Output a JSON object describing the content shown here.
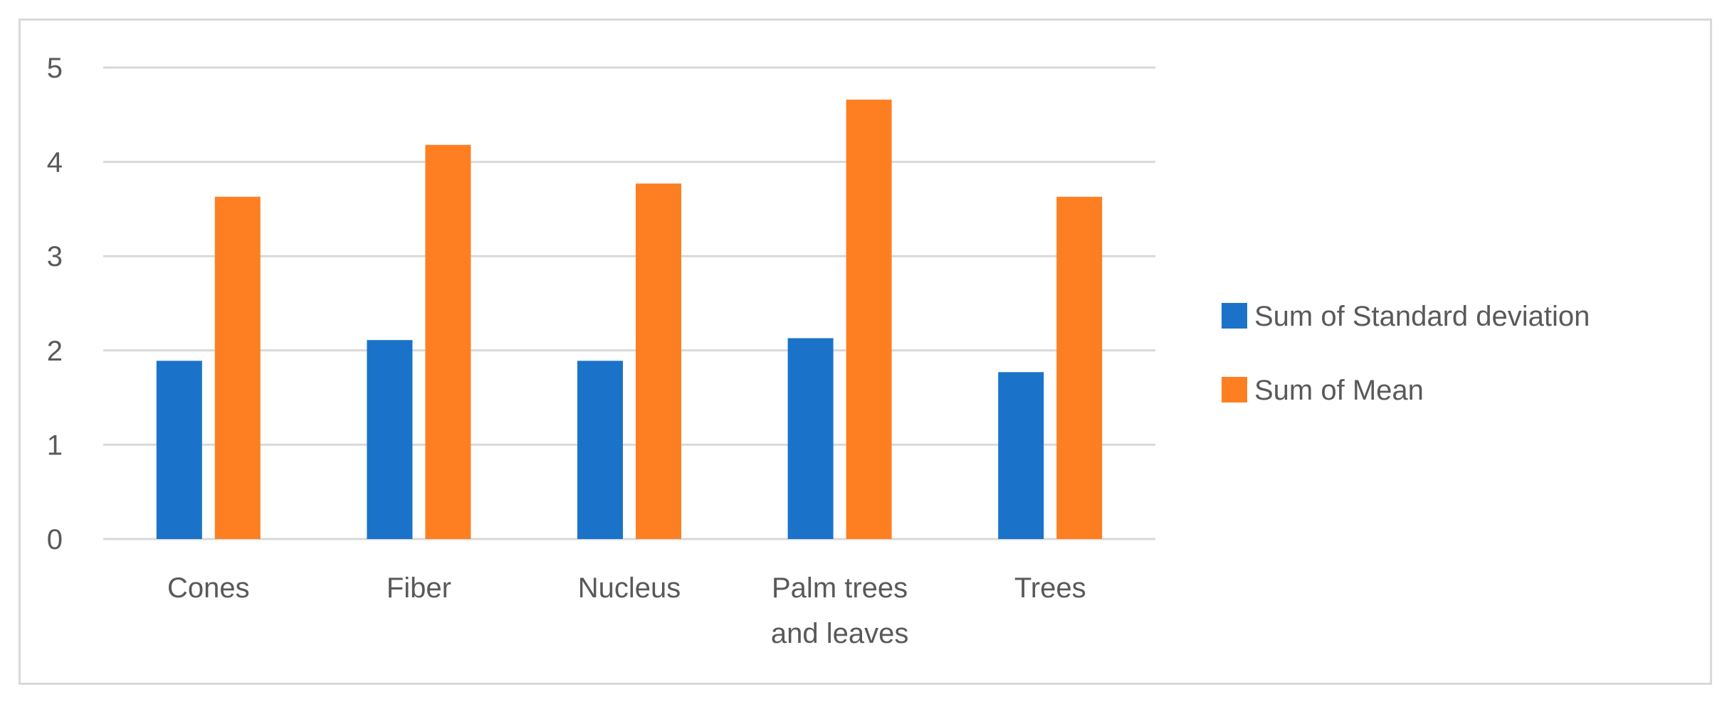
{
  "chart_data": {
    "type": "bar",
    "categories": [
      [
        "Cones"
      ],
      [
        "Fiber"
      ],
      [
        "Nucleus"
      ],
      [
        "Palm trees",
        "and leaves"
      ],
      [
        "Trees"
      ]
    ],
    "series": [
      {
        "name": "Sum of Standard deviation",
        "color": "#1a73c8",
        "values": [
          1.89,
          2.11,
          1.89,
          2.13,
          1.77
        ]
      },
      {
        "name": "Sum of Mean",
        "color": "#fd7f22",
        "values": [
          3.63,
          4.18,
          3.77,
          4.66,
          3.63
        ]
      }
    ],
    "yticks": [
      "0",
      "1",
      "2",
      "3",
      "4",
      "5"
    ],
    "ylim": [
      0,
      5
    ],
    "grid": true,
    "gridline_color": "#d9d9d9",
    "legend_position": "right"
  }
}
